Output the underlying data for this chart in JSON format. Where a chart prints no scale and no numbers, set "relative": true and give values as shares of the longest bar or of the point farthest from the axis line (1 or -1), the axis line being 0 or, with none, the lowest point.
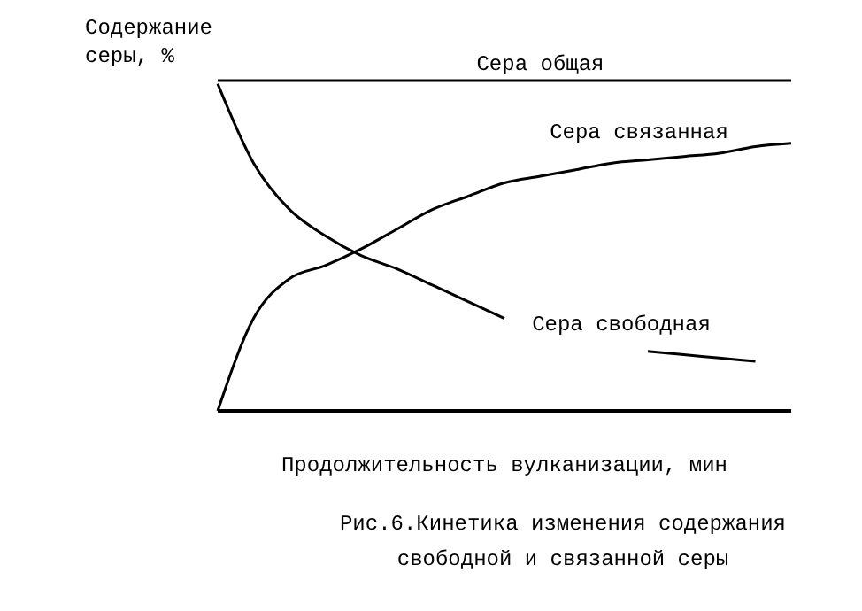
{
  "chart_data": {
    "type": "line",
    "relative": true,
    "title": "Рис.6.Кинетика изменения содержания свободной и связанной серы",
    "xlabel": "Продолжительность вулканизации, мин",
    "ylabel": "Содержание серы, %",
    "legend": false,
    "marker": "none",
    "line_style": "solid",
    "grid": false,
    "categories": [
      null,
      null,
      null,
      null,
      null,
      null,
      null,
      null,
      null,
      null,
      null,
      null,
      null,
      null,
      null,
      null,
      null
    ],
    "series": [
      {
        "name": "Сера общая",
        "color": "#000000",
        "values": [
          1,
          1,
          1,
          1,
          1,
          1,
          1,
          1,
          1,
          1,
          1,
          1,
          1,
          1,
          1,
          1,
          1
        ]
      },
      {
        "name": "Сера связанная",
        "color": "#000000",
        "values": [
          0,
          0.28,
          0.4,
          0.44,
          0.49,
          0.55,
          0.61,
          0.65,
          0.69,
          0.71,
          0.73,
          0.75,
          0.76,
          0.77,
          0.78,
          0.8,
          0.81
        ]
      },
      {
        "name": "Сера свободная",
        "color": "#000000",
        "values": [
          0.99,
          0.75,
          0.61,
          0.53,
          0.47,
          0.43,
          0.38,
          0.33,
          0.28,
          null,
          null,
          null,
          0.18,
          0.17,
          0.16,
          0.15,
          null
        ]
      }
    ]
  }
}
